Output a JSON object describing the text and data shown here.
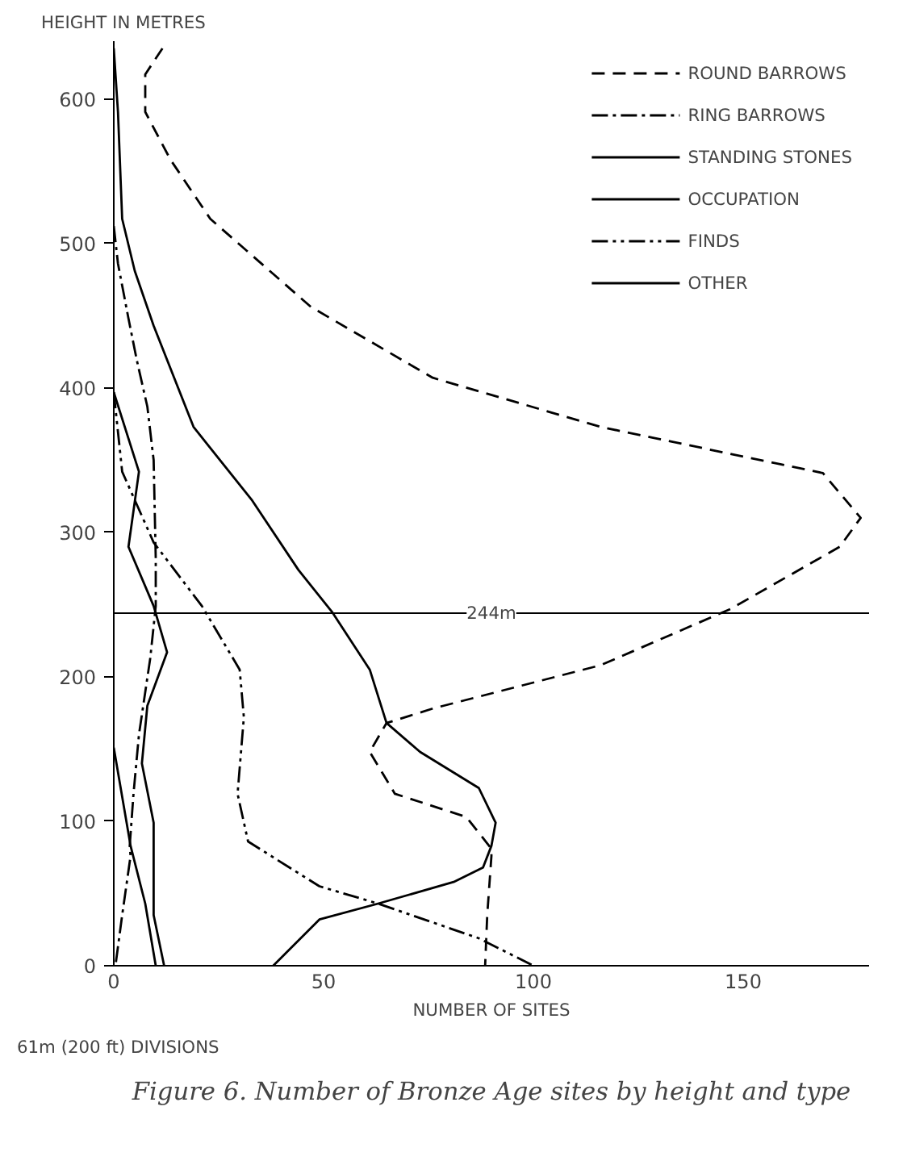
{
  "chart_data": {
    "type": "line",
    "title": "Figure 6. Number of Bronze Age sites by height and type",
    "xlabel": "NUMBER OF SITES",
    "ylabel": "HEIGHT IN METRES",
    "annotations": [
      "61m (200 ft) DIVISIONS"
    ],
    "xlim": [
      0,
      180
    ],
    "ylim": [
      0,
      640
    ],
    "xticks": [
      0,
      50,
      100,
      150
    ],
    "yticks": [
      0,
      100,
      200,
      300,
      400,
      500,
      600
    ],
    "grid": false,
    "legend": "top right",
    "ref_lines": [
      {
        "axis": "y",
        "value": 244,
        "label": "244m",
        "color": "#000000",
        "line_style": "solid"
      }
    ],
    "series": [
      {
        "name": "ROUND BARROWS",
        "color": "#000000",
        "line_style": "dashed",
        "x": [
          11.6,
          7.5,
          7.5,
          13.5,
          23,
          47,
          76,
          116,
          169,
          178,
          173,
          147,
          116,
          76,
          65,
          61,
          67,
          84,
          90,
          90,
          89,
          88.5
        ],
        "values": [
          635,
          617,
          591,
          558,
          517,
          456,
          407,
          373,
          341,
          310,
          290,
          247,
          208,
          178,
          168,
          148,
          119,
          103,
          81,
          76,
          35,
          0
        ]
      },
      {
        "name": "RING BARROWS",
        "color": "#000000",
        "line_style": "dashdot",
        "x": [
          0,
          1,
          3.5,
          5.5,
          8,
          9.5,
          10,
          10,
          8.7,
          6,
          4.7,
          3.8,
          4,
          2,
          0.4
        ],
        "values": [
          512,
          486,
          448,
          419,
          387,
          350,
          282,
          249,
          213,
          160,
          119,
          83,
          76,
          35,
          0
        ]
      },
      {
        "name": "STANDING STONES",
        "color": "#000000",
        "line_style": "solid",
        "x": [
          0,
          1,
          2,
          5,
          9.5,
          19,
          33,
          44,
          52,
          61,
          65,
          73,
          87,
          91,
          90,
          88,
          81,
          63,
          49,
          38
        ],
        "values": [
          635,
          591,
          517,
          481,
          443,
          373,
          322,
          274,
          245,
          205,
          168,
          148,
          123,
          99,
          83,
          68,
          58,
          43,
          32,
          0
        ]
      },
      {
        "name": "OCCUPATION",
        "color": "#000000",
        "line_style": "solid",
        "x": [
          0,
          6,
          3.5,
          9.5,
          12.7,
          8,
          6.7,
          9.5,
          9.5,
          9.5,
          12
        ],
        "values": [
          397,
          342,
          290,
          249,
          217,
          180,
          140,
          99,
          76,
          35,
          0
        ]
      },
      {
        "name": "FINDS",
        "color": "#000000",
        "line_style": "dashdotdot",
        "x": [
          0,
          2,
          9.5,
          21,
          30,
          31,
          29.5,
          32,
          49,
          63,
          87,
          100
        ],
        "values": [
          397,
          342,
          293,
          249,
          205,
          172,
          119,
          86,
          55,
          43,
          19,
          0
        ]
      },
      {
        "name": "OTHER",
        "color": "#000000",
        "line_style": "solid",
        "x": [
          0,
          4,
          7.5,
          10
        ],
        "values": [
          151,
          83,
          43,
          0
        ]
      }
    ]
  }
}
